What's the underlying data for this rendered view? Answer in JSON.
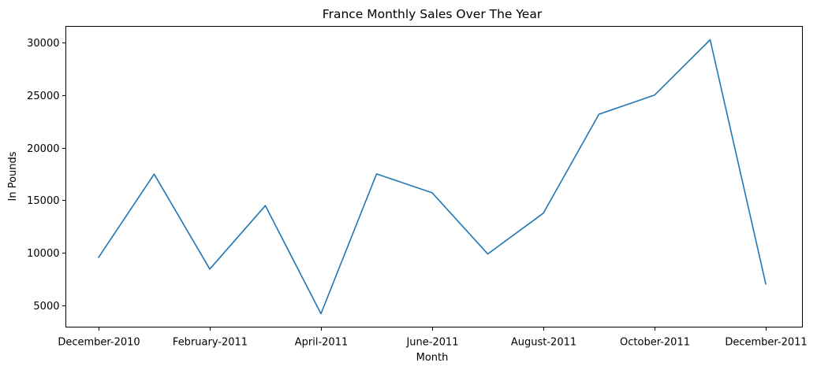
{
  "chart_data": {
    "type": "line",
    "title": "France Monthly Sales Over The Year",
    "xlabel": "Month",
    "ylabel": "In Pounds",
    "x": [
      "December-2010",
      "January-2011",
      "February-2011",
      "March-2011",
      "April-2011",
      "May-2011",
      "June-2011",
      "July-2011",
      "August-2011",
      "September-2011",
      "October-2011",
      "November-2011",
      "December-2011"
    ],
    "xtick_labels": [
      "December-2010",
      "",
      "February-2011",
      "",
      "April-2011",
      "",
      "June-2011",
      "",
      "August-2011",
      "",
      "October-2011",
      "",
      "December-2011"
    ],
    "values": [
      9560,
      17480,
      8440,
      14480,
      4200,
      17500,
      15700,
      9880,
      13760,
      23180,
      25000,
      30260,
      7040
    ],
    "yticks": [
      5000,
      10000,
      15000,
      20000,
      25000,
      30000
    ],
    "ylim": [
      2923,
      31537
    ],
    "grid": false,
    "line_color": "#1f77b4"
  }
}
